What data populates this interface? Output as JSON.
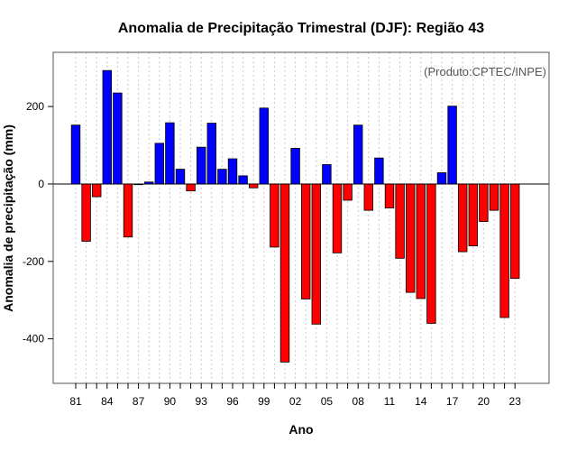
{
  "chart_data": {
    "type": "bar",
    "title": "Anomalia de Precipitação Trimestral (DJF): Região 43",
    "xlabel": "Ano",
    "ylabel": "Anomalia de precipitação (mm)",
    "credit": "(Produto:CPTEC/INPE)",
    "ylim": [
      -515,
      340
    ],
    "yticks": [
      -400,
      -200,
      0,
      200
    ],
    "ytick_labels": [
      "-400",
      "-200",
      "0",
      "200"
    ],
    "grid": "vertical dotted",
    "colors": {
      "positive": "#0000ff",
      "negative": "#ff0000",
      "outline": "#000000",
      "grid": "#c8c8c8"
    },
    "categories": [
      "81",
      "82",
      "83",
      "84",
      "85",
      "86",
      "87",
      "88",
      "89",
      "90",
      "91",
      "92",
      "93",
      "94",
      "95",
      "96",
      "97",
      "98",
      "99",
      "00",
      "01",
      "02",
      "03",
      "04",
      "05",
      "06",
      "07",
      "08",
      "09",
      "10",
      "11",
      "12",
      "13",
      "14",
      "15",
      "16",
      "17",
      "18",
      "19",
      "20",
      "21",
      "22",
      "23"
    ],
    "values": [
      152,
      -148,
      -33,
      293,
      235,
      -137,
      0,
      5,
      105,
      158,
      38,
      -18,
      95,
      157,
      38,
      65,
      21,
      -10,
      196,
      -163,
      -460,
      92,
      -297,
      -362,
      50,
      -178,
      -42,
      152,
      -68,
      67,
      -62,
      -192,
      -280,
      -296,
      -360,
      29,
      201,
      -175,
      -160,
      -97,
      -68,
      -345,
      -244
    ],
    "xtick_labels": [
      "81",
      "84",
      "87",
      "90",
      "93",
      "96",
      "99",
      "02",
      "05",
      "08",
      "11",
      "14",
      "17",
      "20",
      "23"
    ],
    "xtick_every": 3
  }
}
